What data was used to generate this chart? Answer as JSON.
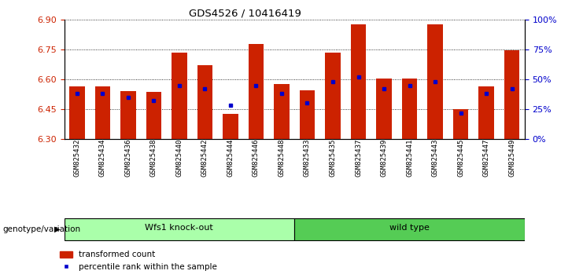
{
  "title": "GDS4526 / 10416419",
  "samples": [
    "GSM825432",
    "GSM825434",
    "GSM825436",
    "GSM825438",
    "GSM825440",
    "GSM825442",
    "GSM825444",
    "GSM825446",
    "GSM825448",
    "GSM825433",
    "GSM825435",
    "GSM825437",
    "GSM825439",
    "GSM825441",
    "GSM825443",
    "GSM825445",
    "GSM825447",
    "GSM825449"
  ],
  "red_values": [
    6.565,
    6.565,
    6.54,
    6.535,
    6.735,
    6.67,
    6.425,
    6.775,
    6.575,
    6.545,
    6.735,
    6.875,
    6.605,
    6.605,
    6.875,
    6.45,
    6.565,
    6.745
  ],
  "blue_values_pct": [
    38,
    38,
    35,
    32,
    45,
    42,
    28,
    45,
    38,
    30,
    48,
    52,
    42,
    45,
    48,
    22,
    38,
    42
  ],
  "ymin": 6.3,
  "ymax": 6.9,
  "yticks": [
    6.3,
    6.45,
    6.6,
    6.75,
    6.9
  ],
  "right_yticks_pct": [
    0,
    25,
    50,
    75,
    100
  ],
  "group1_label": "Wfs1 knock-out",
  "group2_label": "wild type",
  "group1_count": 9,
  "group2_count": 9,
  "bar_color": "#cc2200",
  "dot_color": "#0000cc",
  "group1_bg": "#aaffaa",
  "group2_bg": "#55cc55",
  "xlabel_left": "genotype/variation",
  "legend_red": "transformed count",
  "legend_blue": "percentile rank within the sample",
  "bar_width": 0.6,
  "bar_base": 6.3,
  "bg_color": "#f0f0f0"
}
